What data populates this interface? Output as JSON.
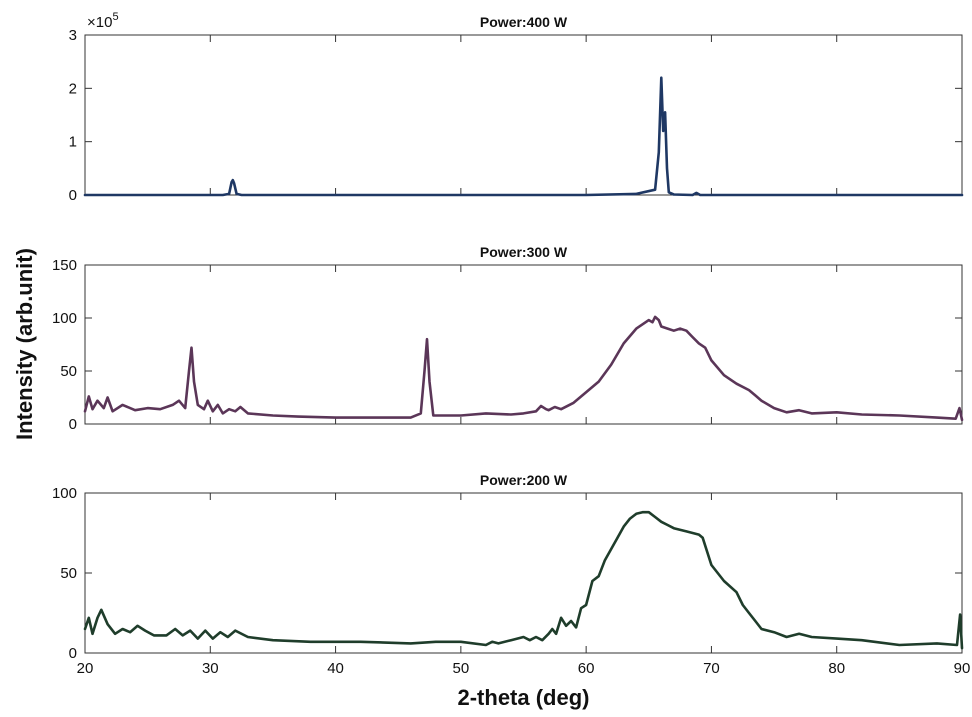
{
  "chart_data": {
    "type": "line",
    "xlabel": "2-theta (deg)",
    "ylabel": "Intensity (arb.unit)",
    "x_range": [
      20,
      90
    ],
    "x_ticks": [
      "20",
      "30",
      "40",
      "50",
      "60",
      "70",
      "80",
      "90"
    ],
    "panels": [
      {
        "title": "Power:400 W",
        "color": "#1f3864",
        "y_range": [
          0,
          3
        ],
        "y_ticks": [
          "0",
          "1",
          "2",
          "3"
        ],
        "y_exponent": "×10",
        "y_exponent_power": "5",
        "series": [
          {
            "x": [
              20,
              31,
              31.5,
              31.7,
              31.8,
              31.9,
              32.1,
              32.5,
              60,
              64,
              65.5,
              65.8,
              66.0,
              66.15,
              66.3,
              66.45,
              66.6,
              67,
              68.5,
              68.8,
              69.1,
              70,
              80,
              90
            ],
            "y": [
              0,
              0,
              0.02,
              0.24,
              0.28,
              0.22,
              0.02,
              0,
              0,
              0.02,
              0.1,
              0.8,
              2.2,
              1.2,
              1.55,
              0.5,
              0.05,
              0.01,
              0,
              0.04,
              0,
              0,
              0,
              0
            ]
          }
        ]
      },
      {
        "title": "Power:300 W",
        "color": "#5b3658",
        "y_range": [
          0,
          150
        ],
        "y_ticks": [
          "0",
          "50",
          "100",
          "150"
        ],
        "series": [
          {
            "x": [
              20,
              20.3,
              20.6,
              21,
              21.5,
              21.8,
              22.2,
              23,
              24,
              25,
              26,
              27,
              27.5,
              28,
              28.3,
              28.5,
              28.7,
              29,
              29.5,
              29.8,
              30.2,
              30.6,
              31,
              31.5,
              32,
              32.4,
              33,
              35,
              37,
              40,
              43,
              46,
              46.8,
              47.1,
              47.3,
              47.5,
              47.8,
              48.5,
              50,
              52,
              54,
              55,
              56,
              56.4,
              56.8,
              57,
              57.5,
              58,
              59,
              60,
              61,
              62,
              63,
              64,
              65,
              65.3,
              65.5,
              65.8,
              66,
              66.5,
              67,
              67.5,
              68,
              68.5,
              69,
              69.5,
              70,
              71,
              72,
              73,
              73.5,
              74,
              75,
              76,
              77,
              78,
              80,
              82,
              85,
              88,
              89.5,
              89.8,
              90
            ],
            "y": [
              12,
              26,
              14,
              22,
              15,
              25,
              12,
              18,
              13,
              15,
              14,
              18,
              22,
              15,
              50,
              72,
              40,
              18,
              14,
              22,
              12,
              18,
              10,
              14,
              12,
              16,
              10,
              8,
              7,
              6,
              6,
              6,
              10,
              50,
              80,
              40,
              8,
              8,
              8,
              10,
              9,
              10,
              12,
              17,
              14,
              13,
              16,
              14,
              20,
              30,
              40,
              56,
              76,
              90,
              98,
              96,
              101,
              98,
              92,
              90,
              88,
              90,
              88,
              82,
              76,
              72,
              60,
              46,
              38,
              32,
              27,
              22,
              15,
              11,
              13,
              10,
              11,
              9,
              8,
              6,
              5,
              15,
              4
            ]
          }
        ]
      },
      {
        "title": "Power:200 W",
        "color": "#1f3d2b",
        "y_range": [
          0,
          100
        ],
        "y_ticks": [
          "0",
          "50",
          "100"
        ],
        "series": [
          {
            "x": [
              20,
              20.3,
              20.6,
              21,
              21.3,
              21.8,
              22.4,
              23,
              23.6,
              24.2,
              24.8,
              25.5,
              26.5,
              27.2,
              27.8,
              28.4,
              29,
              29.6,
              30.2,
              30.8,
              31.4,
              32,
              33,
              35,
              38,
              42,
              46,
              48,
              50,
              52,
              52.5,
              53,
              54,
              55,
              55.5,
              56,
              56.5,
              57,
              57.3,
              57.6,
              58,
              58.4,
              58.8,
              59.2,
              59.6,
              60,
              60.5,
              61,
              61.5,
              62,
              62.5,
              63,
              63.5,
              64,
              64.5,
              65,
              65.5,
              66,
              66.5,
              67,
              68,
              69,
              69.3,
              70,
              71,
              72,
              72.5,
              73,
              73.5,
              74,
              75,
              76,
              77,
              78,
              80,
              82,
              85,
              88,
              89.6,
              89.85,
              90
            ],
            "y": [
              15,
              22,
              12,
              22,
              27,
              18,
              12,
              15,
              13,
              17,
              14,
              11,
              11,
              15,
              11,
              14,
              9,
              14,
              9,
              13,
              10,
              14,
              10,
              8,
              7,
              7,
              6,
              7,
              7,
              5,
              7,
              6,
              8,
              10,
              8,
              10,
              8,
              12,
              15,
              12,
              22,
              17,
              20,
              16,
              28,
              30,
              45,
              48,
              58,
              65,
              72,
              79,
              84,
              87,
              88,
              88,
              85,
              82,
              80,
              78,
              76,
              74,
              72,
              55,
              45,
              38,
              30,
              25,
              20,
              15,
              13,
              10,
              12,
              10,
              9,
              8,
              5,
              6,
              5,
              24,
              3
            ]
          }
        ]
      }
    ]
  }
}
